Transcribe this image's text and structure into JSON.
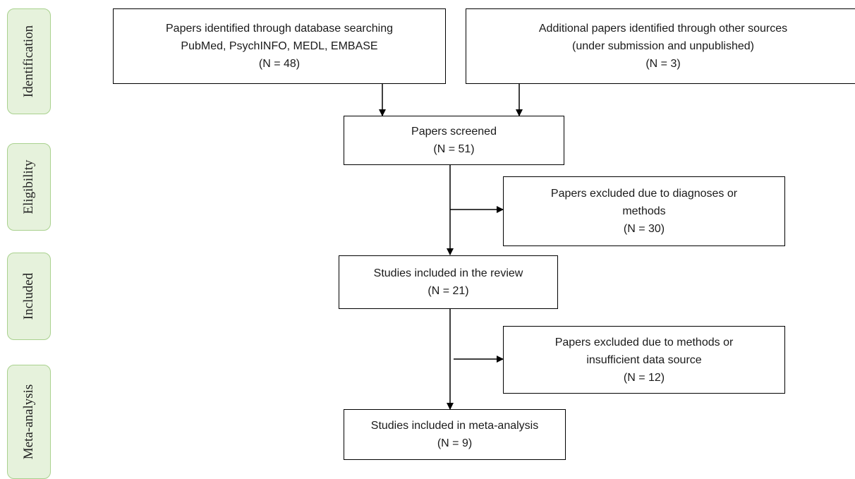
{
  "stages": [
    {
      "key": "identification",
      "label": "Identification"
    },
    {
      "key": "eligibility",
      "label": "Eligibility"
    },
    {
      "key": "included",
      "label": "Included"
    },
    {
      "key": "meta",
      "label": "Meta-analysis"
    }
  ],
  "boxes": {
    "database": {
      "lines": [
        "Papers identified through database searching",
        "PubMed, PsychINFO, MEDL, EMBASE",
        "(N = 48)"
      ]
    },
    "additional": {
      "lines": [
        "Additional papers identified through other sources",
        "(under submission and unpublished)",
        "(N = 3)"
      ]
    },
    "screened": {
      "lines": [
        "Papers screened",
        "(N = 51)"
      ]
    },
    "excluded1": {
      "lines": [
        "Papers excluded due to diagnoses or",
        "methods",
        "(N = 30)"
      ]
    },
    "review": {
      "lines": [
        "Studies included in the review",
        "(N = 21)"
      ]
    },
    "excluded2": {
      "lines": [
        "Papers excluded due to methods or",
        "insufficient data source",
        "(N = 12)"
      ]
    },
    "meta": {
      "lines": [
        "Studies included in meta-analysis",
        "(N = 9)"
      ]
    }
  }
}
